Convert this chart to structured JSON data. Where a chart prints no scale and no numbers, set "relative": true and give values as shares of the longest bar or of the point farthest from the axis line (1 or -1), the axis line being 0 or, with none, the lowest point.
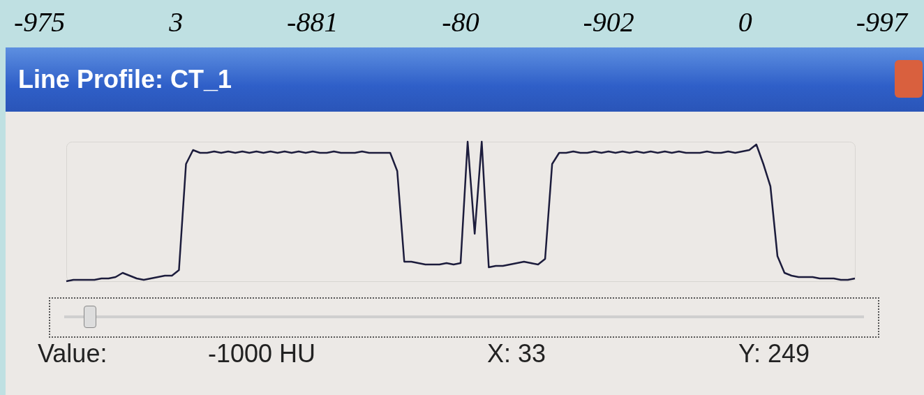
{
  "chart_data": {
    "type": "line",
    "title": "Line Profile: CT_1",
    "relative": true,
    "color": "#1c1c3c",
    "categories": [
      null,
      null,
      null,
      null,
      null,
      null,
      null,
      null,
      null,
      null,
      null,
      null,
      null,
      null,
      null,
      null,
      null,
      null,
      null,
      null,
      null,
      null,
      null,
      null,
      null,
      null,
      null,
      null,
      null,
      null,
      null,
      null,
      null,
      null,
      null,
      null,
      null,
      null,
      null,
      null,
      null,
      null,
      null,
      null,
      null,
      null,
      null,
      null,
      null,
      null,
      null,
      null,
      null,
      null,
      null,
      null,
      null,
      null,
      null,
      null,
      null,
      null,
      null,
      null,
      null,
      null,
      null,
      null,
      null,
      null,
      null,
      null,
      null,
      null,
      null,
      null,
      null,
      null,
      null,
      null,
      null,
      null,
      null,
      null,
      null,
      null,
      null,
      null,
      null,
      null,
      null,
      null,
      null,
      null,
      null,
      null,
      null,
      null,
      null,
      null,
      null,
      null,
      null,
      null,
      null,
      null,
      null,
      null,
      null,
      null,
      null,
      null,
      null
    ],
    "values": [
      0,
      0.01,
      0.01,
      0.01,
      0.01,
      0.02,
      0.02,
      0.03,
      0.06,
      0.04,
      0.02,
      0.01,
      0.02,
      0.03,
      0.04,
      0.04,
      0.08,
      0.84,
      0.94,
      0.92,
      0.92,
      0.93,
      0.92,
      0.93,
      0.92,
      0.93,
      0.92,
      0.93,
      0.92,
      0.93,
      0.92,
      0.93,
      0.92,
      0.93,
      0.92,
      0.93,
      0.92,
      0.92,
      0.93,
      0.92,
      0.92,
      0.92,
      0.93,
      0.92,
      0.92,
      0.92,
      0.92,
      0.79,
      0.14,
      0.14,
      0.13,
      0.12,
      0.12,
      0.12,
      0.13,
      0.12,
      0.13,
      1,
      0.34,
      1,
      0.1,
      0.11,
      0.11,
      0.12,
      0.13,
      0.14,
      0.13,
      0.12,
      0.16,
      0.84,
      0.92,
      0.92,
      0.93,
      0.92,
      0.92,
      0.93,
      0.92,
      0.93,
      0.92,
      0.93,
      0.92,
      0.93,
      0.92,
      0.93,
      0.92,
      0.93,
      0.92,
      0.93,
      0.92,
      0.92,
      0.92,
      0.93,
      0.92,
      0.92,
      0.93,
      0.92,
      0.93,
      0.94,
      0.98,
      0.84,
      0.68,
      0.18,
      0.06,
      0.04,
      0.03,
      0.03,
      0.03,
      0.02,
      0.02,
      0.02,
      0.01,
      0.01,
      0.02
    ],
    "annotations": [
      "-975",
      "3",
      "-881",
      "-80",
      "-902",
      "0",
      "-997",
      "Value:",
      "-1000 HU",
      "X:  33",
      "Y:  249"
    ]
  }
}
